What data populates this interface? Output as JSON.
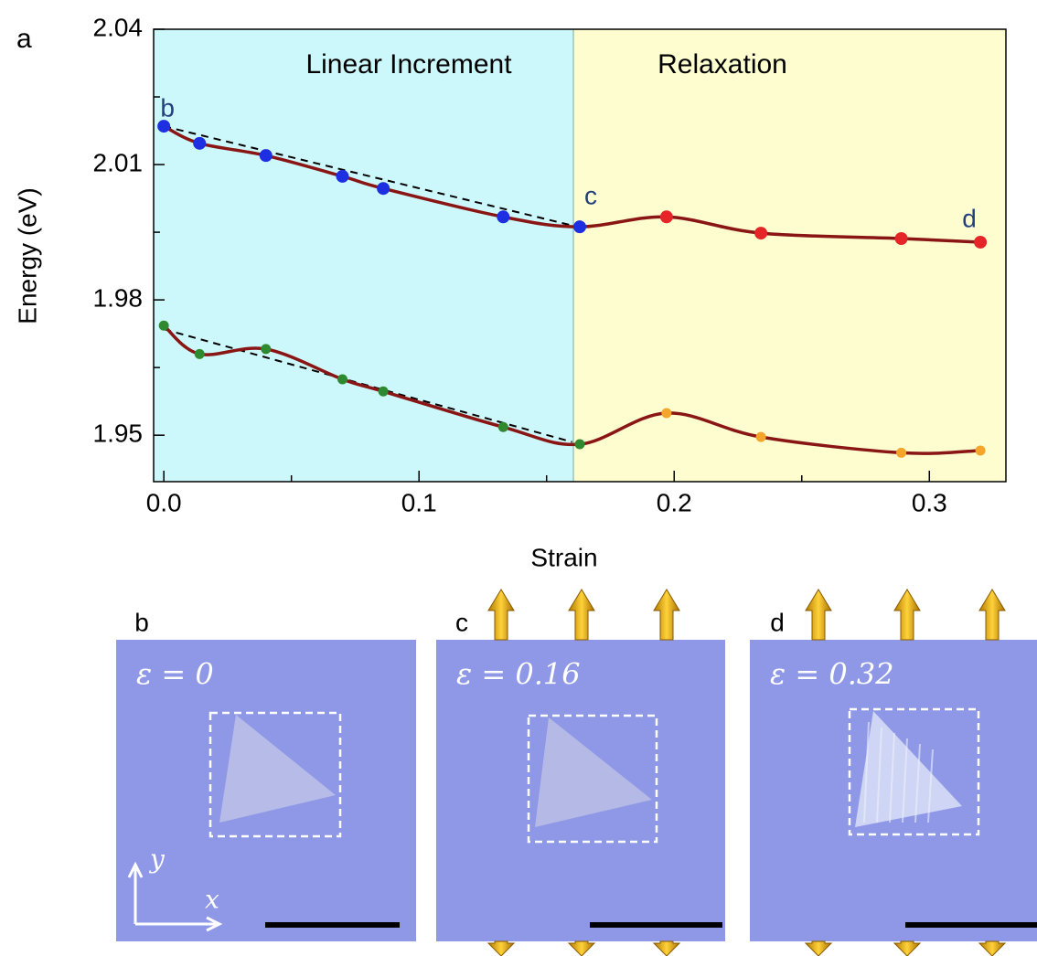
{
  "chart_data": {
    "type": "scatter",
    "panel_label": "a",
    "xlabel": "Strain",
    "ylabel": "Energy (eV)",
    "xlim": [
      -0.004,
      0.33
    ],
    "ylim": [
      1.9397,
      2.04
    ],
    "xticks": [
      {
        "value": 0,
        "label": "0.0"
      },
      0.1,
      0.2,
      0.3
    ],
    "yticks": [
      2.04,
      2.01,
      1.98,
      1.95
    ],
    "xminor": [
      0.05,
      0.15,
      0.25
    ],
    "yminor": [
      2.025,
      1.995,
      1.965
    ],
    "regions": [
      {
        "label": "Linear Increment",
        "x": [
          -0.004,
          0.1605
        ],
        "color": "#cdf8fb"
      },
      {
        "label": "Relaxation",
        "x": [
          0.1605,
          0.33
        ],
        "color": "#fdfdd0"
      }
    ],
    "series": [
      {
        "color": "#1d2fe0",
        "x": [
          0,
          0.014,
          0.04,
          0.07,
          0.086,
          0.133,
          0.163
        ],
        "values": [
          2.0185,
          2.0147,
          2.012,
          2.0074,
          2.0047,
          1.9984,
          1.9962
        ]
      },
      {
        "color": "#e52528",
        "x": [
          0.197,
          0.234,
          0.289,
          0.32
        ],
        "values": [
          1.9984,
          1.9948,
          1.9936,
          1.9928
        ]
      },
      {
        "color": "#2f8a2f",
        "x": [
          0,
          0.014,
          0.04,
          0.07,
          0.086,
          0.133,
          0.163
        ],
        "values": [
          1.9743,
          1.968,
          1.9691,
          1.9624,
          1.9597,
          1.9518,
          1.948
        ]
      },
      {
        "color": "#f5a52a",
        "x": [
          0.197,
          0.234,
          0.289,
          0.32
        ],
        "values": [
          1.9549,
          1.9496,
          1.9461,
          1.9466
        ]
      }
    ],
    "fit_color": "#8a1515",
    "trend_color": "#000000",
    "trend_lines": [
      {
        "x": [
          0,
          0.16
        ],
        "values": [
          2.0185,
          1.9965
        ]
      },
      {
        "x": [
          0,
          0.16
        ],
        "values": [
          1.9735,
          1.9485
        ]
      }
    ],
    "annotations": [
      {
        "text": "b",
        "x": 0,
        "y": 2.0185
      },
      {
        "text": "c",
        "x": 0.163,
        "y": 1.9962
      },
      {
        "text": "d",
        "x": 0.32,
        "y": 1.9928
      }
    ]
  },
  "images": {
    "panels": [
      {
        "label": "b",
        "strain_text": "ε = 0"
      },
      {
        "label": "c",
        "strain_text": "ε = 0.16"
      },
      {
        "label": "d",
        "strain_text": "ε = 0.32"
      }
    ],
    "axis_x": "x",
    "axis_y": "y"
  }
}
